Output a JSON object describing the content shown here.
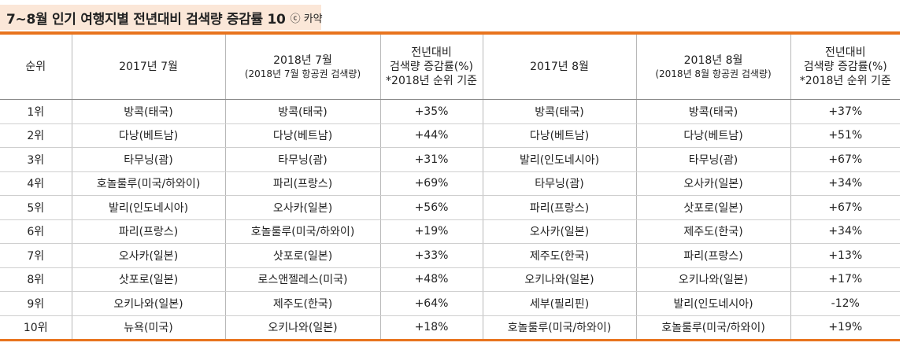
{
  "title": {
    "text": "7~8월 인기 여행지별 전년대비 검색량 증감률 10",
    "source": "ⓒ 카약"
  },
  "table": {
    "headers": [
      {
        "line1": "순위",
        "line2": "",
        "line3": ""
      },
      {
        "line1": "2017년 7월",
        "line2": "",
        "line3": ""
      },
      {
        "line1": "2018년 7월",
        "line2": "(2018년 7월 항공권 검색량)",
        "line3": ""
      },
      {
        "line1": "전년대비",
        "line2": "검색량 증감률(%)",
        "line3": "*2018년 순위 기준"
      },
      {
        "line1": "2017년 8월",
        "line2": "",
        "line3": ""
      },
      {
        "line1": "2018년 8월",
        "line2": "(2018년 8월 항공권 검색량)",
        "line3": ""
      },
      {
        "line1": "전년대비",
        "line2": "검색량 증감률(%)",
        "line3": "*2018년 순위 기준"
      }
    ],
    "rows": [
      [
        "1위",
        "방콕(태국)",
        "방콕(태국)",
        "+35%",
        "방콕(태국)",
        "방콕(태국)",
        "+37%"
      ],
      [
        "2위",
        "다낭(베트남)",
        "다낭(베트남)",
        "+44%",
        "다낭(베트남)",
        "다낭(베트남)",
        "+51%"
      ],
      [
        "3위",
        "타무닝(괌)",
        "타무닝(괌)",
        "+31%",
        "발리(인도네시아)",
        "타무닝(괌)",
        "+67%"
      ],
      [
        "4위",
        "호놀룰루(미국/하와이)",
        "파리(프랑스)",
        "+69%",
        "타무닝(괌)",
        "오사카(일본)",
        "+34%"
      ],
      [
        "5위",
        "발리(인도네시아)",
        "오사카(일본)",
        "+56%",
        "파리(프랑스)",
        "삿포로(일본)",
        "+67%"
      ],
      [
        "6위",
        "파리(프랑스)",
        "호놀룰루(미국/하와이)",
        "+19%",
        "오사카(일본)",
        "제주도(한국)",
        "+34%"
      ],
      [
        "7위",
        "오사카(일본)",
        "삿포로(일본)",
        "+33%",
        "제주도(한국)",
        "파리(프랑스)",
        "+13%"
      ],
      [
        "8위",
        "삿포로(일본)",
        "로스앤젤레스(미국)",
        "+48%",
        "오키나와(일본)",
        "오키나와(일본)",
        "+17%"
      ],
      [
        "9위",
        "오키나와(일본)",
        "제주도(한국)",
        "+64%",
        "세부(필리핀)",
        "발리(인도네시아)",
        "-12%"
      ],
      [
        "10위",
        "뉴욕(미국)",
        "오키나와(일본)",
        "+18%",
        "호놀룰루(미국/하와이)",
        "호놀룰루(미국/하와이)",
        "+19%"
      ]
    ]
  },
  "colors": {
    "accent": "#e8741e",
    "title_bg": "#fbe7d8"
  }
}
